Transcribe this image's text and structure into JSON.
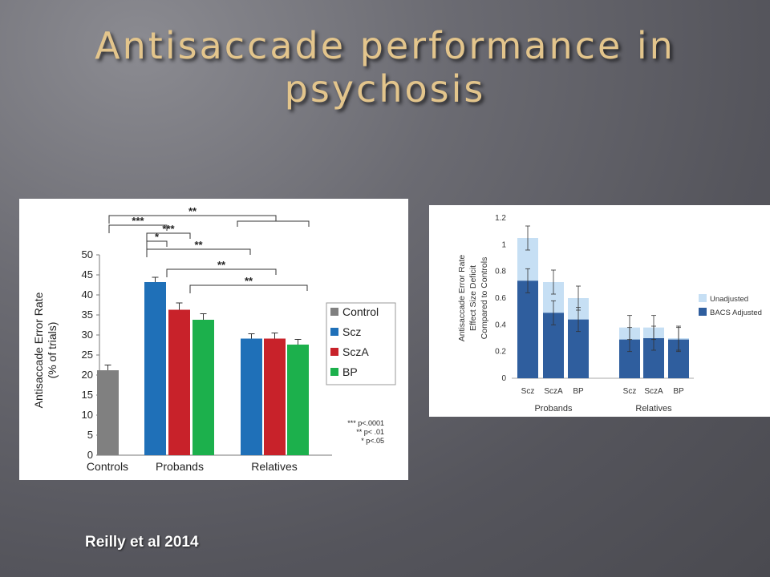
{
  "slide": {
    "title_line1": "Antisaccade performance in",
    "title_line2": "psychosis",
    "citation": "Reilly et al 2014"
  },
  "colors": {
    "control": "#808080",
    "scz": "#1f70b8",
    "scza": "#c8222a",
    "bp": "#1cb04c",
    "unadjusted": "#c6dff4",
    "bacs_adjusted": "#2f5e9e",
    "title": "#e3c58c"
  },
  "chart_data": [
    {
      "type": "bar",
      "ylabel": "Antisaccade Error Rate (% of trials)",
      "ylabel_line1": "Antisaccade Error Rate",
      "ylabel_line2": "(% of trials)",
      "ylim": [
        0,
        50
      ],
      "yticks": [
        "0",
        "5",
        "10",
        "15",
        "20",
        "25",
        "30",
        "35",
        "40",
        "45",
        "50"
      ],
      "group_labels": [
        "Controls",
        "Probands",
        "Relatives"
      ],
      "legend": [
        "Control",
        "Scz",
        "SczA",
        "BP"
      ],
      "legend_position": "right",
      "bars": [
        {
          "group": "Controls",
          "series": "Control",
          "value": 21.2,
          "error": 1.3
        },
        {
          "group": "Probands",
          "series": "Scz",
          "value": 43.2,
          "error": 1.2
        },
        {
          "group": "Probands",
          "series": "SczA",
          "value": 36.3,
          "error": 1.7
        },
        {
          "group": "Probands",
          "series": "BP",
          "value": 33.8,
          "error": 1.5
        },
        {
          "group": "Relatives",
          "series": "Scz",
          "value": 29.1,
          "error": 1.2
        },
        {
          "group": "Relatives",
          "series": "SczA",
          "value": 29.1,
          "error": 1.4
        },
        {
          "group": "Relatives",
          "series": "BP",
          "value": 27.6,
          "error": 1.3
        }
      ],
      "significance": [
        "**",
        "***",
        "***",
        "*",
        "**",
        "**",
        "**"
      ],
      "significance_note": [
        "*** p<.0001",
        "** p< .01",
        "* p<.05"
      ]
    },
    {
      "type": "bar",
      "ylabel_line1": "Antisaccade Error Rate",
      "ylabel_line2": "Effect Size Deficit",
      "ylabel_line3": "Compared to Controls",
      "ylim": [
        0,
        1.2
      ],
      "yticks": [
        "0",
        "0.2",
        "0.4",
        "0.6",
        "0.8",
        "1",
        "1.2"
      ],
      "categories": [
        "Scz",
        "SczA",
        "BP",
        "Scz",
        "SczA",
        "BP"
      ],
      "group_labels": [
        "Probands",
        "Relatives"
      ],
      "legend_position": "right",
      "series": [
        {
          "name": "Unadjusted",
          "values": [
            1.05,
            0.72,
            0.6,
            0.38,
            0.38,
            0.3
          ],
          "errors": [
            0.09,
            0.09,
            0.09,
            0.09,
            0.09,
            0.09
          ]
        },
        {
          "name": "BACS Adjusted",
          "values": [
            0.73,
            0.49,
            0.44,
            0.29,
            0.3,
            0.29
          ],
          "errors": [
            0.09,
            0.09,
            0.09,
            0.09,
            0.09,
            0.09
          ]
        }
      ]
    }
  ]
}
